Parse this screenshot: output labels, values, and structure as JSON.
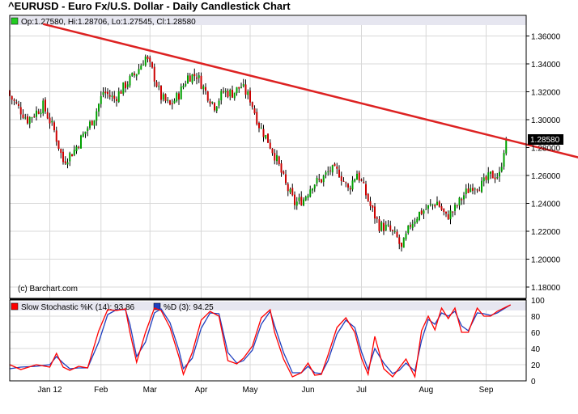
{
  "title": "^EURUSD - Euro Fx/U.S. Dollar - Daily Candlestick Chart",
  "ohlc_summary": "Op:1.27580, Hi:1.28706, Lo:1.27545, Cl:1.28580",
  "watermark": "(c) Barchart.com",
  "last_price_label": "1.28580",
  "colors": {
    "up_candle": "#00a000",
    "down_candle": "#cc0000",
    "wick": "#000000",
    "trendline": "#dd2222",
    "k_line": "#ff0000",
    "d_line": "#1f3fbf",
    "legend_band": "#e6e6f0",
    "grid": "#d8d8d8"
  },
  "chart_data": [
    {
      "type": "candlestick",
      "title": "^EURUSD - Euro Fx/U.S. Dollar - Daily Candlestick Chart",
      "x_tick_labels": [
        "Jan 12",
        "Feb",
        "Mar",
        "Apr",
        "May",
        "Jun",
        "Jul",
        "Aug",
        "Sep"
      ],
      "y_tick_labels": [
        "1.36000",
        "1.34000",
        "1.32000",
        "1.30000",
        "1.28000",
        "1.26000",
        "1.24000",
        "1.22000",
        "1.20000",
        "1.18000"
      ],
      "y_ticks": [
        1.36,
        1.34,
        1.32,
        1.3,
        1.28,
        1.26,
        1.24,
        1.22,
        1.2,
        1.18
      ],
      "ylim": [
        1.175,
        1.376
      ],
      "grid": true,
      "legend": "Op:1.27580, Hi:1.28706, Lo:1.27545, Cl:1.28580",
      "last_value": 1.2858,
      "price_path": [
        {
          "day": 0,
          "close": 1.317
        },
        {
          "day": 8,
          "close": 1.3
        },
        {
          "day": 15,
          "close": 1.31
        },
        {
          "day": 20,
          "close": 1.292
        },
        {
          "day": 24,
          "close": 1.27
        },
        {
          "day": 29,
          "close": 1.278
        },
        {
          "day": 33,
          "close": 1.289
        },
        {
          "day": 38,
          "close": 1.302
        },
        {
          "day": 42,
          "close": 1.32
        },
        {
          "day": 47,
          "close": 1.315
        },
        {
          "day": 52,
          "close": 1.325
        },
        {
          "day": 57,
          "close": 1.334
        },
        {
          "day": 61,
          "close": 1.345
        },
        {
          "day": 64,
          "close": 1.335
        },
        {
          "day": 68,
          "close": 1.316
        },
        {
          "day": 72,
          "close": 1.31
        },
        {
          "day": 76,
          "close": 1.318
        },
        {
          "day": 80,
          "close": 1.331
        },
        {
          "day": 84,
          "close": 1.332
        },
        {
          "day": 88,
          "close": 1.32
        },
        {
          "day": 92,
          "close": 1.31
        },
        {
          "day": 96,
          "close": 1.32
        },
        {
          "day": 100,
          "close": 1.319
        },
        {
          "day": 104,
          "close": 1.324
        },
        {
          "day": 108,
          "close": 1.315
        },
        {
          "day": 112,
          "close": 1.296
        },
        {
          "day": 116,
          "close": 1.285
        },
        {
          "day": 120,
          "close": 1.271
        },
        {
          "day": 124,
          "close": 1.253
        },
        {
          "day": 128,
          "close": 1.24
        },
        {
          "day": 132,
          "close": 1.243
        },
        {
          "day": 136,
          "close": 1.254
        },
        {
          "day": 140,
          "close": 1.257
        },
        {
          "day": 144,
          "close": 1.264
        },
        {
          "day": 148,
          "close": 1.262
        },
        {
          "day": 152,
          "close": 1.25
        },
        {
          "day": 156,
          "close": 1.262
        },
        {
          "day": 158,
          "close": 1.255
        },
        {
          "day": 162,
          "close": 1.238
        },
        {
          "day": 166,
          "close": 1.224
        },
        {
          "day": 170,
          "close": 1.222
        },
        {
          "day": 174,
          "close": 1.215
        },
        {
          "day": 176,
          "close": 1.207
        },
        {
          "day": 180,
          "close": 1.225
        },
        {
          "day": 184,
          "close": 1.233
        },
        {
          "day": 188,
          "close": 1.237
        },
        {
          "day": 192,
          "close": 1.241
        },
        {
          "day": 196,
          "close": 1.23
        },
        {
          "day": 200,
          "close": 1.236
        },
        {
          "day": 204,
          "close": 1.246
        },
        {
          "day": 208,
          "close": 1.253
        },
        {
          "day": 212,
          "close": 1.253
        },
        {
          "day": 216,
          "close": 1.26
        },
        {
          "day": 220,
          "close": 1.26
        },
        {
          "day": 222,
          "close": 1.279
        },
        {
          "day": 223,
          "close": 1.2858
        }
      ],
      "trendline": {
        "start": {
          "day": 15,
          "value": 1.3686
        },
        "end": {
          "day": 257,
          "value": 1.2723
        }
      }
    },
    {
      "type": "line",
      "title": "Slow Stochastic",
      "series": [
        {
          "name": "Slow Stochastic %K (14): 93.86",
          "color": "#ff0000",
          "points": [
            [
              0,
              20
            ],
            [
              5,
              14
            ],
            [
              12,
              20
            ],
            [
              18,
              17
            ],
            [
              21,
              34
            ],
            [
              24,
              17
            ],
            [
              27,
              13
            ],
            [
              31,
              18
            ],
            [
              35,
              16
            ],
            [
              40,
              62
            ],
            [
              44,
              88
            ],
            [
              48,
              87
            ],
            [
              52,
              89
            ],
            [
              54,
              60
            ],
            [
              57,
              23
            ],
            [
              61,
              60
            ],
            [
              65,
              90
            ],
            [
              68,
              87
            ],
            [
              72,
              66
            ],
            [
              76,
              30
            ],
            [
              78,
              8
            ],
            [
              82,
              35
            ],
            [
              86,
              75
            ],
            [
              90,
              86
            ],
            [
              94,
              80
            ],
            [
              98,
              25
            ],
            [
              102,
              21
            ],
            [
              105,
              28
            ],
            [
              109,
              43
            ],
            [
              113,
              78
            ],
            [
              117,
              88
            ],
            [
              119,
              60
            ],
            [
              123,
              27
            ],
            [
              127,
              5
            ],
            [
              131,
              10
            ],
            [
              134,
              22
            ],
            [
              137,
              7
            ],
            [
              140,
              8
            ],
            [
              143,
              32
            ],
            [
              147,
              66
            ],
            [
              151,
              78
            ],
            [
              155,
              60
            ],
            [
              158,
              28
            ],
            [
              161,
              8
            ],
            [
              164,
              55
            ],
            [
              168,
              15
            ],
            [
              172,
              5
            ],
            [
              175,
              16
            ],
            [
              178,
              27
            ],
            [
              182,
              5
            ],
            [
              185,
              62
            ],
            [
              188,
              80
            ],
            [
              191,
              63
            ],
            [
              194,
              90
            ],
            [
              197,
              77
            ],
            [
              200,
              90
            ],
            [
              203,
              60
            ],
            [
              206,
              60
            ],
            [
              210,
              90
            ],
            [
              213,
              80
            ],
            [
              216,
              80
            ],
            [
              219,
              86
            ],
            [
              222,
              90
            ],
            [
              225,
              94
            ]
          ]
        },
        {
          "name": "%D (3): 94.25",
          "color": "#1f3fbf",
          "points": [
            [
              0,
              15
            ],
            [
              5,
              17
            ],
            [
              12,
              18
            ],
            [
              18,
              20
            ],
            [
              21,
              30
            ],
            [
              24,
              22
            ],
            [
              27,
              15
            ],
            [
              31,
              16
            ],
            [
              35,
              16
            ],
            [
              40,
              48
            ],
            [
              44,
              82
            ],
            [
              48,
              88
            ],
            [
              52,
              88
            ],
            [
              54,
              70
            ],
            [
              57,
              30
            ],
            [
              61,
              48
            ],
            [
              65,
              84
            ],
            [
              68,
              89
            ],
            [
              72,
              72
            ],
            [
              76,
              38
            ],
            [
              78,
              15
            ],
            [
              82,
              28
            ],
            [
              86,
              65
            ],
            [
              90,
              84
            ],
            [
              94,
              83
            ],
            [
              98,
              35
            ],
            [
              102,
              22
            ],
            [
              105,
              25
            ],
            [
              109,
              38
            ],
            [
              113,
              70
            ],
            [
              117,
              86
            ],
            [
              119,
              68
            ],
            [
              123,
              35
            ],
            [
              127,
              10
            ],
            [
              131,
              10
            ],
            [
              134,
              18
            ],
            [
              137,
              10
            ],
            [
              140,
              9
            ],
            [
              143,
              25
            ],
            [
              147,
              58
            ],
            [
              151,
              75
            ],
            [
              155,
              66
            ],
            [
              158,
              36
            ],
            [
              161,
              14
            ],
            [
              164,
              40
            ],
            [
              168,
              22
            ],
            [
              172,
              9
            ],
            [
              175,
              13
            ],
            [
              178,
              22
            ],
            [
              182,
              12
            ],
            [
              185,
              50
            ],
            [
              188,
              76
            ],
            [
              191,
              70
            ],
            [
              194,
              84
            ],
            [
              197,
              80
            ],
            [
              200,
              86
            ],
            [
              203,
              68
            ],
            [
              206,
              62
            ],
            [
              210,
              84
            ],
            [
              213,
              83
            ],
            [
              216,
              81
            ],
            [
              219,
              84
            ],
            [
              222,
              89
            ],
            [
              225,
              94
            ]
          ]
        }
      ],
      "y_tick_labels": [
        "100",
        "80",
        "60",
        "40",
        "20",
        "0"
      ],
      "y_ticks": [
        100,
        80,
        60,
        40,
        20,
        0
      ],
      "ylim": [
        0,
        100
      ],
      "legend": "top-left",
      "grid": true
    }
  ]
}
